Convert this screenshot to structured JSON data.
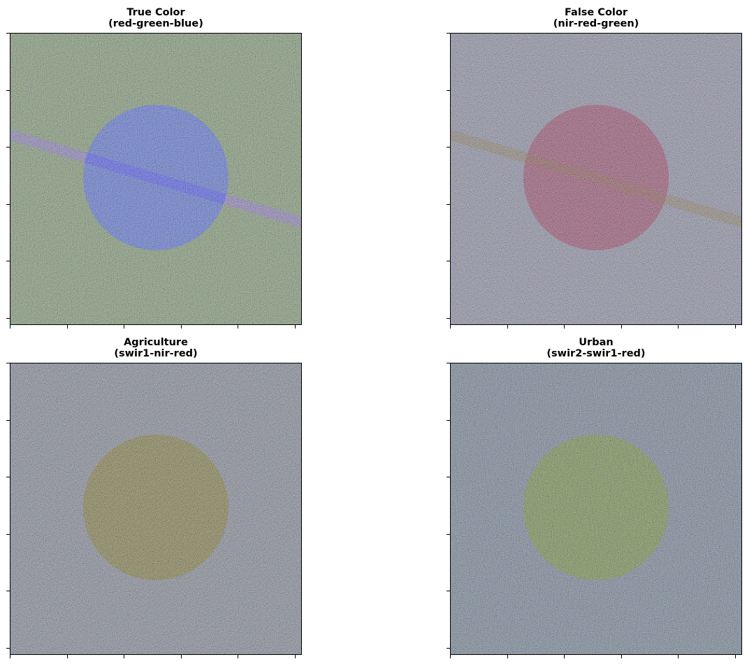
{
  "panels": [
    {
      "title": "True Color",
      "subtitle": "(red-green-blue)",
      "colors": {
        "background": "#6a8a5c",
        "circle": "#3a5ad8",
        "stripe": "#7a64c0"
      },
      "has_stripe": true,
      "stripe_in_circle": "#2a30ff"
    },
    {
      "title": "False Color",
      "subtitle": "(nir-red-green)",
      "colors": {
        "background": "#7a7c9a",
        "circle": "#8a2c58",
        "stripe": "#7a6a58"
      },
      "has_stripe": true,
      "stripe_in_circle": "#7a3a38"
    },
    {
      "title": "Agriculture",
      "subtitle": "(swir1-nir-red)",
      "colors": {
        "background": "#6e7488",
        "circle": "#6a6420"
      },
      "has_stripe": false
    },
    {
      "title": "Urban",
      "subtitle": "(swir2-swir1-red)",
      "colors": {
        "background": "#5a6e88",
        "circle": "#587c28"
      },
      "has_stripe": false
    }
  ]
}
